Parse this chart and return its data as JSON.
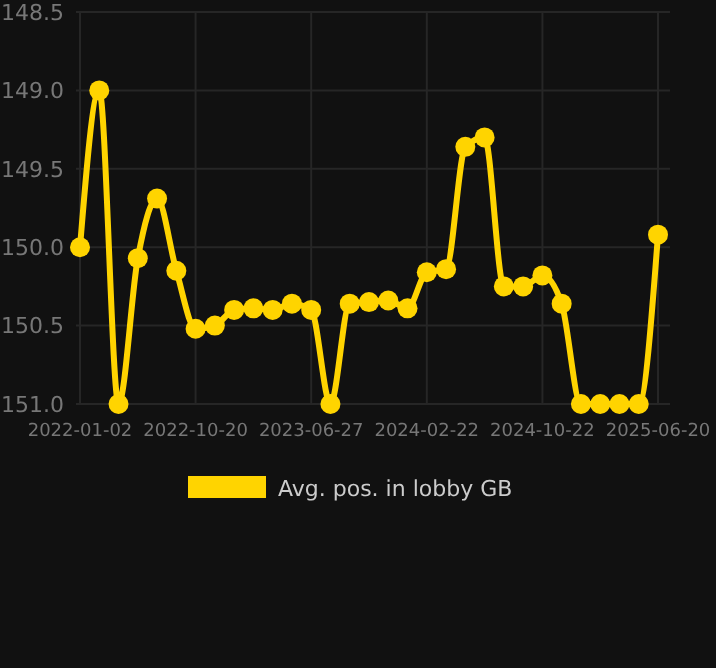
{
  "chart_data": {
    "type": "line",
    "categories": [
      "2022-01-02",
      null,
      null,
      null,
      null,
      null,
      "2022-10-20",
      null,
      null,
      null,
      null,
      null,
      "2023-06-27",
      null,
      null,
      null,
      null,
      null,
      "2024-02-22",
      null,
      null,
      null,
      null,
      null,
      "2024-10-22",
      null,
      null,
      null,
      null,
      null,
      "2025-06-20"
    ],
    "series": [
      {
        "name": "Avg. pos. in lobby GB",
        "color": "#ffd400",
        "values": [
          150.0,
          149.0,
          151.0,
          150.07,
          149.69,
          150.15,
          150.52,
          150.5,
          150.4,
          150.39,
          150.4,
          150.36,
          150.4,
          151.0,
          150.36,
          150.35,
          150.34,
          150.39,
          150.16,
          150.14,
          149.36,
          149.3,
          150.25,
          150.25,
          150.18,
          150.36,
          151.0,
          151.0,
          151.0,
          151.0,
          149.92
        ]
      }
    ],
    "ylim": [
      151.0,
      148.5
    ],
    "yticks": [
      {
        "value": 148.5,
        "label": "148.5"
      },
      {
        "value": 149,
        "label": "149.0"
      },
      {
        "value": 149.5,
        "label": "149.5"
      },
      {
        "value": 150,
        "label": "150.0"
      },
      {
        "value": 150.5,
        "label": "150.5"
      },
      {
        "value": 151,
        "label": "151.0"
      }
    ],
    "grid": true,
    "legend": "bottom",
    "marker": "circle",
    "line_style": "solid"
  }
}
